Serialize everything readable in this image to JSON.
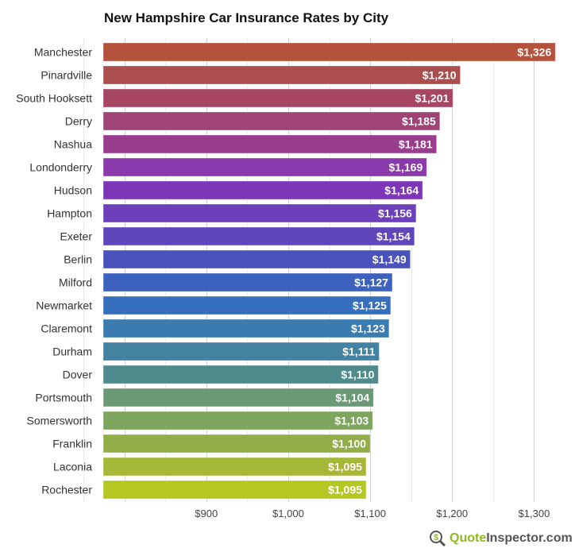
{
  "chart_data": {
    "type": "bar",
    "orientation": "horizontal",
    "title": "New Hampshire Car Insurance Rates by City",
    "categories": [
      "Manchester",
      "Pinardville",
      "South Hooksett",
      "Derry",
      "Nashua",
      "Londonderry",
      "Hudson",
      "Hampton",
      "Exeter",
      "Berlin",
      "Milford",
      "Newmarket",
      "Claremont",
      "Durham",
      "Dover",
      "Portsmouth",
      "Somersworth",
      "Franklin",
      "Laconia",
      "Rochester"
    ],
    "values": [
      1326,
      1210,
      1201,
      1185,
      1181,
      1169,
      1164,
      1156,
      1154,
      1149,
      1127,
      1125,
      1123,
      1111,
      1110,
      1104,
      1103,
      1100,
      1095,
      1095
    ],
    "data_labels": [
      "$1,326",
      "$1,210",
      "$1,201",
      "$1,185",
      "$1,181",
      "$1,169",
      "$1,164",
      "$1,156",
      "$1,154",
      "$1,149",
      "$1,127",
      "$1,125",
      "$1,123",
      "$1,111",
      "$1,110",
      "$1,104",
      "$1,103",
      "$1,100",
      "$1,095",
      "$1,095"
    ],
    "colors": [
      "#b5523b",
      "#ab4e4e",
      "#a64663",
      "#a04478",
      "#9a3d8f",
      "#8a3aaa",
      "#7e36b8",
      "#6e3fbb",
      "#5e47ba",
      "#4a52bb",
      "#3c62bd",
      "#356fbd",
      "#3a7bb0",
      "#4382a0",
      "#4f8b8c",
      "#6a9a75",
      "#7ea55e",
      "#93ad48",
      "#a5b838",
      "#b5c723"
    ],
    "xlim": [
      750,
      1350
    ],
    "xticks": [
      900,
      1000,
      1100,
      1200,
      1300
    ],
    "xtick_labels": [
      "$900",
      "$1,000",
      "$1,100",
      "$1,200",
      "$1,300"
    ],
    "grid": true,
    "xlabel": "",
    "ylabel": ""
  },
  "logo": {
    "part1": "Quote",
    "part2": "Inspector.com",
    "icon": "dollar-magnifier-icon"
  }
}
